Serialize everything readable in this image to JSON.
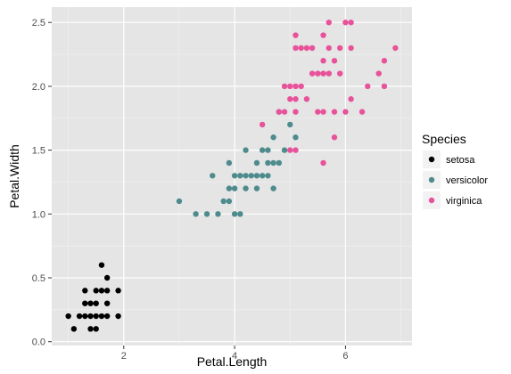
{
  "chart_data": {
    "type": "scatter",
    "title": "",
    "xlabel": "Petal.Length",
    "ylabel": "Petal.Width",
    "xlim": [
      0.7,
      7.2
    ],
    "ylim": [
      -0.03,
      2.62
    ],
    "xticks": [
      2,
      4,
      6
    ],
    "yticks": [
      0.0,
      0.5,
      1.0,
      1.5,
      2.0,
      2.5
    ],
    "xtick_labels": [
      "2",
      "4",
      "6"
    ],
    "ytick_labels": [
      "0.0",
      "0.5",
      "1.0",
      "1.5",
      "2.0",
      "2.5"
    ],
    "grid": true,
    "background": "#e5e5e5",
    "legend": {
      "title": "Species",
      "position": "right"
    },
    "series": [
      {
        "name": "setosa",
        "color": "#000000",
        "points": [
          [
            1.0,
            0.2
          ],
          [
            1.1,
            0.1
          ],
          [
            1.2,
            0.2
          ],
          [
            1.3,
            0.2
          ],
          [
            1.3,
            0.3
          ],
          [
            1.3,
            0.4
          ],
          [
            1.4,
            0.1
          ],
          [
            1.4,
            0.2
          ],
          [
            1.4,
            0.3
          ],
          [
            1.5,
            0.1
          ],
          [
            1.5,
            0.2
          ],
          [
            1.5,
            0.3
          ],
          [
            1.5,
            0.4
          ],
          [
            1.6,
            0.2
          ],
          [
            1.6,
            0.4
          ],
          [
            1.6,
            0.6
          ],
          [
            1.7,
            0.2
          ],
          [
            1.7,
            0.3
          ],
          [
            1.7,
            0.4
          ],
          [
            1.7,
            0.5
          ],
          [
            1.9,
            0.2
          ],
          [
            1.9,
            0.4
          ]
        ]
      },
      {
        "name": "versicolor",
        "color": "#4e8b8d",
        "points": [
          [
            3.0,
            1.1
          ],
          [
            3.3,
            1.0
          ],
          [
            3.5,
            1.0
          ],
          [
            3.6,
            1.3
          ],
          [
            3.7,
            1.0
          ],
          [
            3.8,
            1.1
          ],
          [
            3.9,
            1.1
          ],
          [
            3.9,
            1.2
          ],
          [
            3.9,
            1.4
          ],
          [
            4.0,
            1.0
          ],
          [
            4.0,
            1.2
          ],
          [
            4.0,
            1.3
          ],
          [
            4.1,
            1.0
          ],
          [
            4.1,
            1.3
          ],
          [
            4.2,
            1.2
          ],
          [
            4.2,
            1.3
          ],
          [
            4.2,
            1.5
          ],
          [
            4.3,
            1.3
          ],
          [
            4.4,
            1.2
          ],
          [
            4.4,
            1.3
          ],
          [
            4.4,
            1.4
          ],
          [
            4.5,
            1.3
          ],
          [
            4.5,
            1.5
          ],
          [
            4.6,
            1.3
          ],
          [
            4.6,
            1.4
          ],
          [
            4.6,
            1.5
          ],
          [
            4.7,
            1.2
          ],
          [
            4.7,
            1.4
          ],
          [
            4.7,
            1.6
          ],
          [
            4.8,
            1.4
          ],
          [
            4.8,
            1.8
          ],
          [
            4.9,
            1.5
          ],
          [
            5.0,
            1.7
          ],
          [
            5.1,
            1.6
          ]
        ]
      },
      {
        "name": "virginica",
        "color": "#e8529a",
        "points": [
          [
            4.5,
            1.7
          ],
          [
            4.8,
            1.8
          ],
          [
            4.9,
            1.8
          ],
          [
            4.9,
            2.0
          ],
          [
            5.0,
            1.5
          ],
          [
            5.0,
            1.9
          ],
          [
            5.0,
            2.0
          ],
          [
            5.1,
            1.5
          ],
          [
            5.1,
            1.8
          ],
          [
            5.1,
            1.9
          ],
          [
            5.1,
            2.0
          ],
          [
            5.1,
            2.3
          ],
          [
            5.1,
            2.4
          ],
          [
            5.2,
            2.0
          ],
          [
            5.2,
            2.3
          ],
          [
            5.3,
            1.9
          ],
          [
            5.3,
            2.3
          ],
          [
            5.4,
            2.1
          ],
          [
            5.4,
            2.3
          ],
          [
            5.5,
            1.8
          ],
          [
            5.5,
            2.1
          ],
          [
            5.6,
            1.4
          ],
          [
            5.6,
            1.8
          ],
          [
            5.6,
            2.1
          ],
          [
            5.6,
            2.2
          ],
          [
            5.6,
            2.4
          ],
          [
            5.7,
            2.1
          ],
          [
            5.7,
            2.3
          ],
          [
            5.7,
            2.5
          ],
          [
            5.8,
            1.6
          ],
          [
            5.8,
            1.8
          ],
          [
            5.8,
            2.2
          ],
          [
            5.9,
            2.1
          ],
          [
            5.9,
            2.3
          ],
          [
            6.0,
            1.8
          ],
          [
            6.0,
            2.5
          ],
          [
            6.1,
            1.9
          ],
          [
            6.1,
            2.3
          ],
          [
            6.1,
            2.5
          ],
          [
            6.3,
            1.8
          ],
          [
            6.4,
            2.0
          ],
          [
            6.6,
            2.1
          ],
          [
            6.7,
            2.0
          ],
          [
            6.7,
            2.2
          ],
          [
            6.9,
            2.3
          ]
        ]
      }
    ]
  }
}
